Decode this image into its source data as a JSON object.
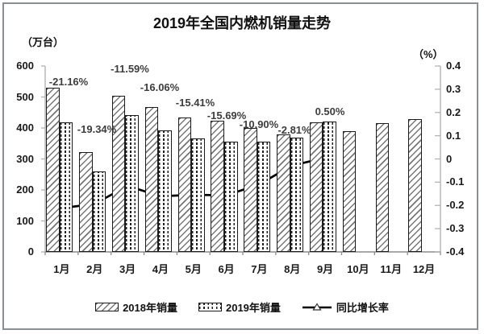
{
  "title": "2019年全国内燃机销量走势",
  "left_axis_unit": "（万台）",
  "right_axis_unit": "（%）",
  "legend": {
    "series_2018": "2018年销量",
    "series_2019": "2019年销量",
    "growth": "同比增长率"
  },
  "chart_data": {
    "type": "bar",
    "subtype": "bar+line combo, dual axis",
    "title": "2019年全国内燃机销量走势",
    "categories": [
      "1月",
      "2月",
      "3月",
      "4月",
      "5月",
      "6月",
      "7月",
      "8月",
      "9月",
      "10月",
      "11月",
      "12月"
    ],
    "series": [
      {
        "name": "2018年销量",
        "type": "bar",
        "axis": "left",
        "pattern": "diagonal-hatch",
        "values": [
          530,
          322,
          503,
          467,
          434,
          423,
          401,
          378,
          418,
          389,
          416,
          428
        ]
      },
      {
        "name": "2019年销量",
        "type": "bar",
        "axis": "left",
        "pattern": "vertical-dash-hatch",
        "values": [
          418,
          260,
          441,
          392,
          367,
          357,
          357,
          368,
          421,
          null,
          null,
          null
        ]
      },
      {
        "name": "同比增长率",
        "type": "line",
        "axis": "right",
        "marker": "open-triangle",
        "values": [
          -0.2116,
          -0.1934,
          -0.1159,
          -0.1606,
          -0.1541,
          -0.1569,
          -0.109,
          -0.0281,
          0.005,
          null,
          null,
          null
        ]
      }
    ],
    "point_labels": [
      "-21.16%",
      "-19.34%",
      "-11.59%",
      "-16.06%",
      "-15.41%",
      "-15.69%",
      "-10.90%",
      "-2.81%",
      "0.50%"
    ],
    "left_axis": {
      "unit": "（万台）",
      "min": 0,
      "max": 600,
      "tick_labels": [
        "600",
        "500",
        "400",
        "300",
        "200",
        "100",
        "0"
      ],
      "tick_values": [
        600,
        500,
        400,
        300,
        200,
        100,
        0
      ]
    },
    "right_axis": {
      "unit": "（%）",
      "min": -0.4,
      "max": 0.4,
      "tick_labels": [
        "0.4",
        "0.3",
        "0.2",
        "0.1",
        "0",
        "-0.1",
        "-0.2",
        "-0.3",
        "-0.4"
      ],
      "tick_values": [
        0.4,
        0.3,
        0.2,
        0.1,
        0,
        -0.1,
        -0.2,
        -0.3,
        -0.4
      ]
    },
    "legend_position": "bottom",
    "grid": false,
    "colors": {
      "bar_fill": "#ffffff",
      "bar_outline": "#1c1c1c",
      "hatch": "#777777",
      "line": "#000000",
      "marker_fill": "#ffffff",
      "point_label": "#3d3d3d",
      "axis_line": "#b3b3b3",
      "frame_border": "#8a8f94"
    }
  }
}
